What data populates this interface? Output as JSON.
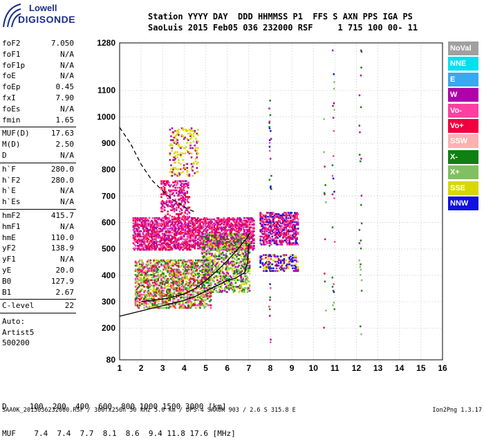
{
  "logo": {
    "line1": "Lowell",
    "line2": "DIGISONDE"
  },
  "header": {
    "line1": "Station YYYY DAY  DDD HHMMSS P1  FFS S AXN PPS IGA PS",
    "line2": "SaoLuis 2015 Feb05 036 232000 RSF     1 715 100 00- 11"
  },
  "params": [
    {
      "name": "foF2",
      "value": "7.050"
    },
    {
      "name": "foF1",
      "value": "N/A"
    },
    {
      "name": "foF1p",
      "value": "N/A"
    },
    {
      "name": "foE",
      "value": "N/A"
    },
    {
      "name": "foEp",
      "value": "0.45"
    },
    {
      "name": "fxI",
      "value": "7.90"
    },
    {
      "name": "foEs",
      "value": "N/A"
    },
    {
      "name": "fmin",
      "value": "1.65"
    },
    {
      "name": "MUF(D)",
      "value": "17.63",
      "sep": true
    },
    {
      "name": "M(D)",
      "value": "2.50"
    },
    {
      "name": "D",
      "value": "N/A"
    },
    {
      "name": "h`F",
      "value": "280.0",
      "sep": true
    },
    {
      "name": "h`F2",
      "value": "280.0"
    },
    {
      "name": "h`E",
      "value": "N/A"
    },
    {
      "name": "h`Es",
      "value": "N/A"
    },
    {
      "name": "hmF2",
      "value": "415.7",
      "sep": true
    },
    {
      "name": "hmF1",
      "value": "N/A"
    },
    {
      "name": "hmE",
      "value": "110.0"
    },
    {
      "name": "yF2",
      "value": "138.9"
    },
    {
      "name": "yF1",
      "value": "N/A"
    },
    {
      "name": "yE",
      "value": "20.0"
    },
    {
      "name": "B0",
      "value": "127.9"
    },
    {
      "name": "B1",
      "value": "2.67"
    },
    {
      "name": "C-level",
      "value": "22",
      "sep": true
    }
  ],
  "auto": {
    "line1": "Auto:",
    "line2": "Artist5",
    "line3": "500200"
  },
  "legend": [
    {
      "label": "NoVal",
      "color": "#a0a0a0"
    },
    {
      "label": "NNE",
      "color": "#00e0f0"
    },
    {
      "label": "E",
      "color": "#38a8f0"
    },
    {
      "label": "W",
      "color": "#b000a8"
    },
    {
      "label": "Vo-",
      "color": "#ff40a0"
    },
    {
      "label": "Vo+",
      "color": "#f00040"
    },
    {
      "label": "SSW",
      "color": "#ffb0b0"
    },
    {
      "label": "X-",
      "color": "#108010"
    },
    {
      "label": "X+",
      "color": "#80c060"
    },
    {
      "label": "SSE",
      "color": "#d8d800"
    },
    {
      "label": "NNW",
      "color": "#1010e0"
    }
  ],
  "muf_table": {
    "line1": "D     100  200  400  600  800 1000 1500 3000 [km]",
    "line2": "MUF    7.4  7.4  7.7  8.1  8.6  9.4 11.8 17.6 [MHz]"
  },
  "footer": {
    "left": "SAA0K_2015036232000.RSF / 300fx256h 50 kHz 5.0 km / DPS-4 SAA0K 903 / 2.6 S 315.8 E",
    "right": "Ion2Png 1.3.17"
  },
  "chart_data": {
    "type": "scatter",
    "xlim": [
      1,
      16
    ],
    "ylim": [
      80,
      1280
    ],
    "x_ticks": [
      1,
      2,
      3,
      4,
      5,
      6,
      7,
      8,
      9,
      10,
      11,
      12,
      13,
      14,
      15,
      16
    ],
    "y_ticks": [
      80,
      200,
      300,
      400,
      500,
      600,
      700,
      800,
      900,
      1000,
      1100,
      1280
    ],
    "grid": true,
    "legend_position": "right",
    "clusters": [
      {
        "x": [
          1.6,
          7.2
        ],
        "y": [
          500,
          620
        ],
        "colors": [
          "#b000a8",
          "#ff40a0",
          "#f00040"
        ],
        "density": 0.55
      },
      {
        "x": [
          1.7,
          5.2
        ],
        "y": [
          280,
          460
        ],
        "colors": [
          "#d8d800",
          "#80c060",
          "#ff40a0",
          "#f00040",
          "#108010"
        ],
        "density": 0.45
      },
      {
        "x": [
          4.8,
          7.0
        ],
        "y": [
          340,
          560
        ],
        "colors": [
          "#108010",
          "#80c060",
          "#d8d800",
          "#b000a8"
        ],
        "density": 0.35
      },
      {
        "x": [
          7.5,
          9.3
        ],
        "y": [
          520,
          640
        ],
        "colors": [
          "#b000a8",
          "#ff40a0",
          "#f00040",
          "#1010e0"
        ],
        "density": 0.5
      },
      {
        "x": [
          7.5,
          9.3
        ],
        "y": [
          420,
          480
        ],
        "colors": [
          "#1010e0",
          "#d8d800",
          "#b000a8"
        ],
        "density": 0.35
      },
      {
        "x": [
          2.9,
          4.2
        ],
        "y": [
          620,
          760
        ],
        "colors": [
          "#b000a8",
          "#ff40a0",
          "#f00040"
        ],
        "density": 0.3
      },
      {
        "x": [
          3.3,
          4.6
        ],
        "y": [
          780,
          960
        ],
        "colors": [
          "#d8d800",
          "#d8d800",
          "#b000a8"
        ],
        "density": 0.18
      }
    ],
    "columns": [
      {
        "x": 7.95,
        "y": [
          150,
          1080
        ],
        "colors": [
          "#b000a8",
          "#1010e0",
          "#108010",
          "#ff40a0"
        ],
        "density": 0.2
      },
      {
        "x": 10.5,
        "y": [
          180,
          1100
        ],
        "colors": [
          "#108010",
          "#80c060",
          "#f00040"
        ],
        "density": 0.06
      },
      {
        "x": 10.9,
        "y": [
          140,
          1260
        ],
        "colors": [
          "#108010",
          "#80c060",
          "#ff40a0",
          "#b000a8",
          "#1010e0"
        ],
        "density": 0.12
      },
      {
        "x": 12.15,
        "y": [
          180,
          1260
        ],
        "colors": [
          "#108010",
          "#80c060",
          "#b000a8"
        ],
        "density": 0.1
      }
    ],
    "traces": [
      {
        "name": "",
        "style": "dashed",
        "x": [
          1.0,
          1.5,
          2.0,
          2.5,
          3.0,
          3.4,
          3.8,
          4.2,
          4.5
        ],
        "y": [
          960,
          900,
          820,
          760,
          720,
          690,
          670,
          650,
          640
        ]
      },
      {
        "name": "",
        "style": "solid",
        "x": [
          1.0,
          2.0,
          3.0,
          3.5,
          4.0,
          4.5,
          5.0,
          5.5,
          6.0,
          6.4,
          6.8,
          6.95,
          7.0
        ],
        "y": [
          245,
          265,
          285,
          295,
          305,
          320,
          340,
          360,
          380,
          390,
          410,
          450,
          520
        ]
      },
      {
        "name": "",
        "style": "solid",
        "x": [
          2.0,
          3.0,
          3.5,
          4.0,
          4.5,
          5.0,
          5.5,
          6.0,
          6.5,
          6.9,
          7.05
        ],
        "y": [
          300,
          310,
          318,
          330,
          350,
          380,
          415,
          455,
          500,
          540,
          560
        ]
      }
    ]
  }
}
